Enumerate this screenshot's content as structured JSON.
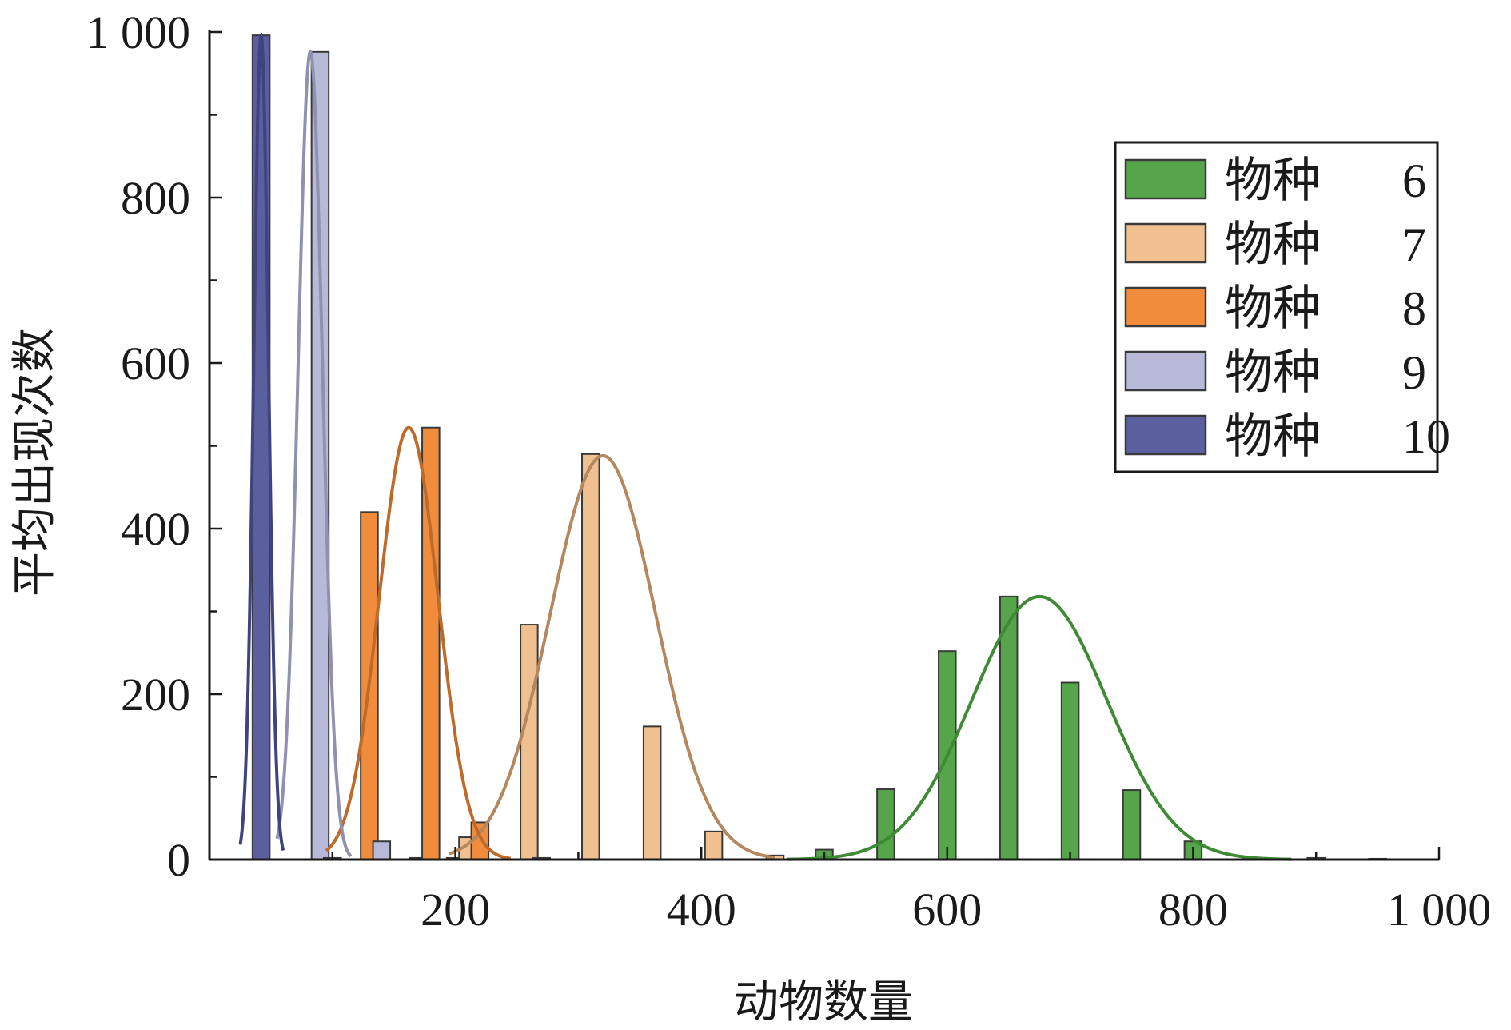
{
  "chart_data": {
    "type": "bar",
    "xlabel": "动物数量",
    "ylabel": "平均出现次数",
    "xlim": [
      0,
      1000
    ],
    "ylim": [
      0,
      1000
    ],
    "x_ticks": [
      200,
      400,
      600,
      800,
      1000
    ],
    "x_tick_labels": [
      "200",
      "400",
      "600",
      "800",
      "1 000"
    ],
    "y_ticks": [
      0,
      200,
      400,
      600,
      800,
      1000
    ],
    "y_tick_labels": [
      "0",
      "200",
      "400",
      "600",
      "800",
      "1 000"
    ],
    "bin_width": 10,
    "legend_position": "top-right",
    "grid": false,
    "series": [
      {
        "name_prefix": "物种",
        "name_number": "6",
        "color": "#56a54a",
        "curve_color": "#3f8a35",
        "bars": [
          [
            500,
            12
          ],
          [
            550,
            85
          ],
          [
            600,
            252
          ],
          [
            650,
            318
          ],
          [
            700,
            214
          ],
          [
            750,
            84
          ],
          [
            800,
            22
          ],
          [
            900,
            2
          ],
          [
            950,
            1
          ]
        ],
        "fit": {
          "mean": 675,
          "sd": 55,
          "peak": 318,
          "range": [
            470,
            880
          ]
        }
      },
      {
        "name_prefix": "物种",
        "name_number": "7",
        "color": "#f0c090",
        "curve_color": "#b5875f",
        "bars": [
          [
            200,
            2
          ],
          [
            210,
            27
          ],
          [
            260,
            284
          ],
          [
            270,
            2
          ],
          [
            310,
            490
          ],
          [
            360,
            161
          ],
          [
            410,
            34
          ],
          [
            460,
            5
          ]
        ],
        "fit": {
          "mean": 320,
          "sd": 43,
          "peak": 488,
          "range": [
            195,
            460
          ]
        }
      },
      {
        "name_prefix": "物种",
        "name_number": "8",
        "color": "#f08c3c",
        "curve_color": "#c06a2a",
        "bars": [
          [
            130,
            420
          ],
          [
            170,
            2
          ],
          [
            180,
            522
          ],
          [
            220,
            45
          ]
        ],
        "fit": {
          "mean": 162,
          "sd": 24,
          "peak": 522,
          "range": [
            95,
            245
          ]
        }
      },
      {
        "name_prefix": "物种",
        "name_number": "9",
        "color": "#b8b8d8",
        "curve_color": "#9090b0",
        "bars": [
          [
            90,
            976
          ],
          [
            100,
            2
          ],
          [
            140,
            22
          ]
        ],
        "fit": {
          "mean": 82,
          "sd": 10,
          "peak": 976,
          "range": [
            55,
            115
          ]
        }
      },
      {
        "name_prefix": "物种",
        "name_number": "10",
        "color": "#5a5f9e",
        "curve_color": "#3f4380",
        "bars": [
          [
            42,
            996
          ]
        ],
        "fit": {
          "mean": 42,
          "sd": 6,
          "peak": 996,
          "range": [
            25,
            60
          ]
        }
      }
    ]
  }
}
